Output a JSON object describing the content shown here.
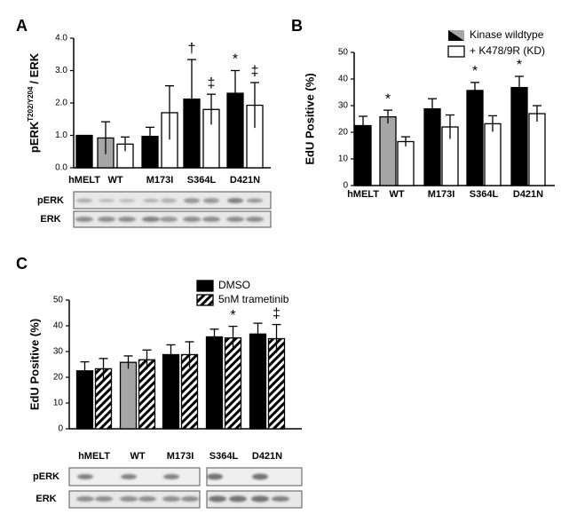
{
  "chart_data": [
    {
      "type": "bar",
      "panel_label": "A",
      "ylabel": "pERK",
      "ylabel_sup": "T202/Y204",
      "ylabel_suffix": "/ ERK",
      "categories": [
        "hMELT",
        "WT",
        "M173I",
        "S364L",
        "D421N"
      ],
      "series": [
        {
          "color": "#000000",
          "point_colors": [
            "#000000",
            "#a6a6a6",
            "#000000",
            "#000000",
            "#000000"
          ],
          "values": [
            1.0,
            0.92,
            0.97,
            2.12,
            2.3
          ],
          "errors": [
            0,
            0.5,
            0.28,
            1.22,
            0.7
          ]
        },
        {
          "color": "#ffffff",
          "values": [
            null,
            0.73,
            1.7,
            1.8,
            1.93
          ],
          "errors": [
            null,
            0.22,
            0.83,
            0.47,
            0.7
          ]
        }
      ],
      "ylim": [
        0,
        4
      ],
      "yticks": [
        {
          "value": 0,
          "label": "0.0"
        },
        {
          "value": 1,
          "label": "1.0"
        },
        {
          "value": 2,
          "label": "2.0"
        },
        {
          "value": 3,
          "label": "3.0"
        },
        {
          "value": 4,
          "label": "4.0"
        }
      ],
      "annotations": [
        {
          "text": "†",
          "category": 3,
          "series": 0
        },
        {
          "text": "‡",
          "category": 3,
          "series": 1
        },
        {
          "text": "*",
          "category": 4,
          "series": 0
        },
        {
          "text": "‡",
          "category": 4,
          "series": 1
        }
      ],
      "blot_labels": [
        "pERK",
        "ERK"
      ]
    },
    {
      "type": "bar",
      "panel_label": "B",
      "ylabel": "EdU  Positive (%)",
      "categories": [
        "hMELT",
        "WT",
        "M173I",
        "S364L",
        "D421N"
      ],
      "series": [
        {
          "name": "Kinase wildtype",
          "color": "#000000",
          "point_colors": [
            "#000000",
            "#a6a6a6",
            "#000000",
            "#000000",
            "#000000"
          ],
          "values": [
            22.5,
            25.8,
            28.8,
            35.7,
            36.8
          ],
          "errors": [
            3.5,
            2.5,
            3.8,
            3,
            4.2
          ]
        },
        {
          "name": "+ K478/9R (KD)",
          "color": "#ffffff",
          "values": [
            null,
            16.5,
            22,
            23.2,
            27
          ],
          "errors": [
            null,
            1.8,
            4.5,
            3,
            3
          ]
        }
      ],
      "ylim": [
        0,
        50
      ],
      "yticks": [
        0,
        10,
        20,
        30,
        40,
        50
      ],
      "legend": "upper right",
      "annotations": [
        {
          "text": "*",
          "category": 1,
          "series": 0
        },
        {
          "text": "*",
          "category": 3,
          "series": 0
        },
        {
          "text": "*",
          "category": 4,
          "series": 0
        }
      ]
    },
    {
      "type": "bar",
      "panel_label": "C",
      "ylabel": "EdU  Positive (%)",
      "categories": [
        "hMELT",
        "WT",
        "M173I",
        "S364L",
        "D421N"
      ],
      "series": [
        {
          "name": "DMSO",
          "color": "#000000",
          "point_colors": [
            "#000000",
            "#a6a6a6",
            "#000000",
            "#000000",
            "#000000"
          ],
          "values": [
            22.5,
            25.8,
            28.8,
            35.7,
            36.8
          ],
          "errors": [
            3.5,
            2.5,
            3.8,
            3,
            4.2
          ]
        },
        {
          "name": "5nM trametinib",
          "color": "#ffffff",
          "hatch": true,
          "values": [
            23.3,
            26.8,
            28.8,
            35.3,
            35
          ],
          "errors": [
            4,
            3.8,
            5,
            4.5,
            5.5
          ]
        }
      ],
      "ylim": [
        0,
        50
      ],
      "yticks": [
        0,
        10,
        20,
        30,
        40,
        50
      ],
      "legend": "upper center",
      "annotations": [
        {
          "text": "*",
          "category": 3,
          "series": 1
        },
        {
          "text": "‡",
          "category": 4,
          "series": 1
        }
      ],
      "blot_labels": [
        "pERK",
        "ERK"
      ]
    }
  ]
}
